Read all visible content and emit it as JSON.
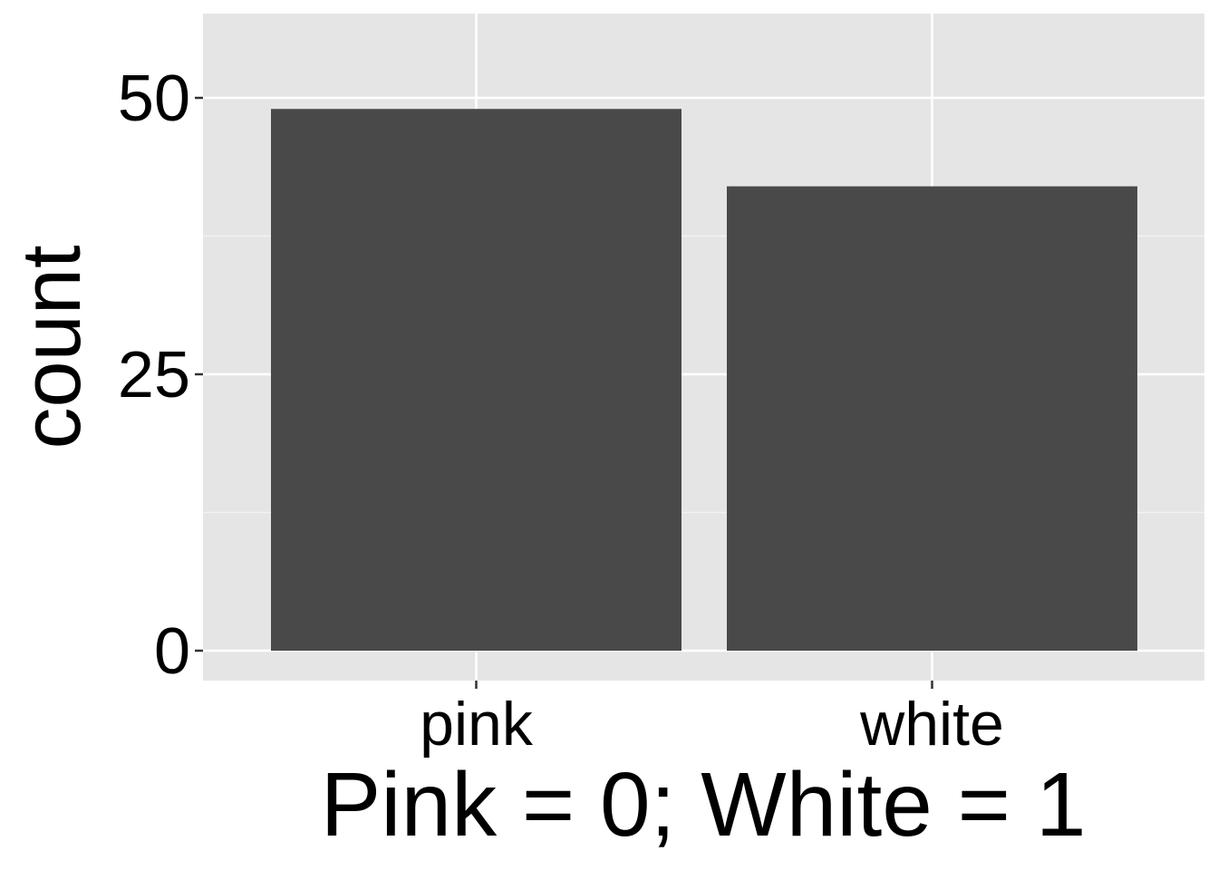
{
  "chart_data": {
    "type": "bar",
    "categories": [
      "pink",
      "white"
    ],
    "values": [
      49,
      42
    ],
    "title": "",
    "xlabel": "Pink = 0; White = 1",
    "ylabel": "count",
    "ylim": [
      0,
      58
    ],
    "yticks": [
      0,
      25,
      50
    ],
    "ytick_labels": [
      "0",
      "25",
      "50"
    ],
    "grid": true,
    "legend": "none",
    "colors": {
      "bar": "#494949",
      "panel_background": "#e5e5e5",
      "grid_major": "#ffffff",
      "grid_minor": "#f2f2f2",
      "tick": "#333333",
      "text": "#000000"
    }
  }
}
